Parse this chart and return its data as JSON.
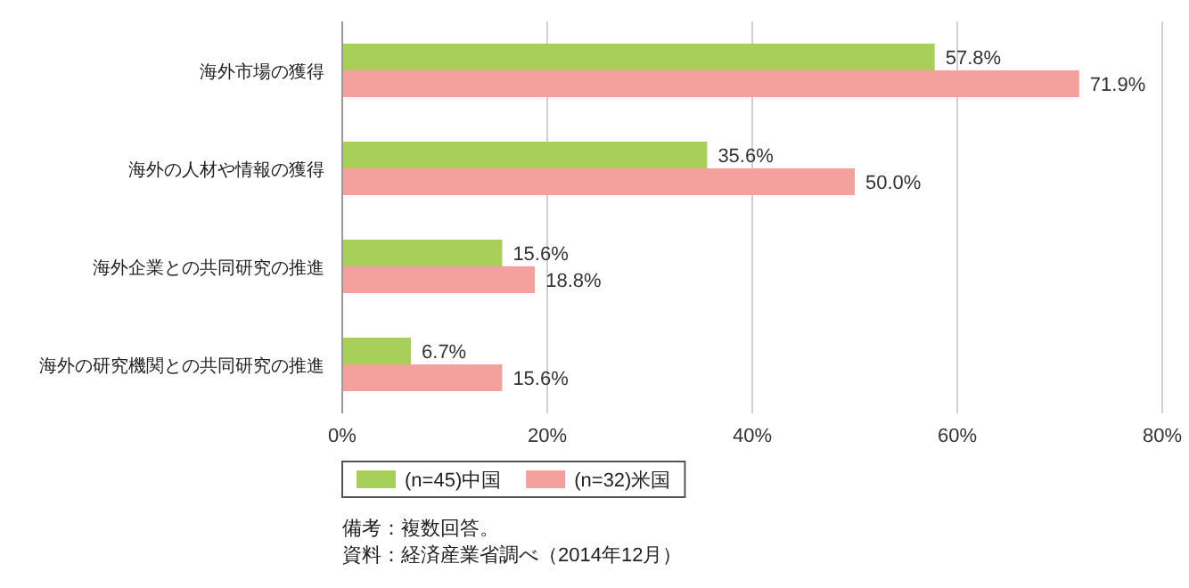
{
  "chart_data": {
    "type": "bar",
    "orientation": "horizontal",
    "categories": [
      "海外市場の獲得",
      "海外の人材や情報の獲得",
      "海外企業との共同研究の推進",
      "海外の研究機関との共同研究の推進"
    ],
    "series": [
      {
        "name": "(n=45)中国",
        "color": "#a8cf5a",
        "values": [
          57.8,
          35.6,
          15.6,
          6.7
        ],
        "value_labels": [
          "57.8%",
          "35.6%",
          "15.6%",
          "6.7%"
        ]
      },
      {
        "name": "(n=32)米国",
        "color": "#f4a09c",
        "values": [
          71.9,
          50.0,
          18.8,
          15.6
        ],
        "value_labels": [
          "71.9%",
          "50.0%",
          "18.8%",
          "15.6%"
        ]
      }
    ],
    "xlim": [
      0,
      80
    ],
    "xticks": [
      {
        "value": 0,
        "label": "0%"
      },
      {
        "value": 20,
        "label": "20%"
      },
      {
        "value": 40,
        "label": "40%"
      },
      {
        "value": 60,
        "label": "60%"
      },
      {
        "value": 80,
        "label": "80%"
      }
    ],
    "grid": "x",
    "legend": "bottom",
    "annotations": [
      "備考：複数回答。",
      "資料：経済産業省調べ（2014年12月）"
    ]
  }
}
